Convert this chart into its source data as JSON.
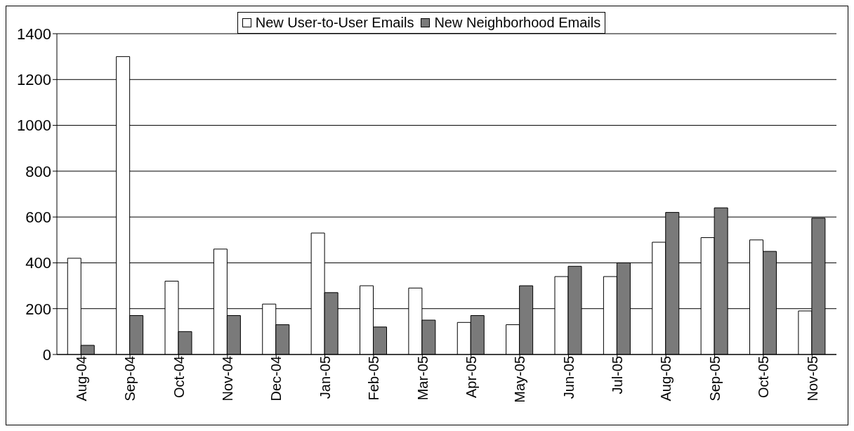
{
  "chart_data": {
    "type": "bar",
    "categories": [
      "Aug-04",
      "Sep-04",
      "Oct-04",
      "Nov-04",
      "Dec-04",
      "Jan-05",
      "Feb-05",
      "Mar-05",
      "Apr-05",
      "May-05",
      "Jun-05",
      "Jul-05",
      "Aug-05",
      "Sep-05",
      "Oct-05",
      "Nov-05"
    ],
    "series": [
      {
        "name": "New User-to-User Emails",
        "color": "#ffffff",
        "values": [
          420,
          1300,
          320,
          460,
          220,
          530,
          300,
          290,
          140,
          130,
          340,
          340,
          490,
          510,
          500,
          190
        ]
      },
      {
        "name": "New Neighborhood Emails",
        "color": "#7a7a7a",
        "values": [
          40,
          170,
          100,
          170,
          130,
          270,
          120,
          150,
          170,
          300,
          385,
          400,
          620,
          640,
          450,
          595
        ]
      }
    ],
    "ylim": [
      0,
      1400
    ],
    "yticks": [
      0,
      200,
      400,
      600,
      800,
      1000,
      1200,
      1400
    ],
    "grid": "y",
    "legend": "top"
  }
}
